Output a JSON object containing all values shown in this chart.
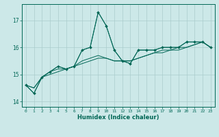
{
  "title": "",
  "xlabel": "Humidex (Indice chaleur)",
  "ylabel": "",
  "xlim": [
    -0.5,
    23.5
  ],
  "ylim": [
    13.8,
    17.6
  ],
  "yticks": [
    14,
    15,
    16,
    17
  ],
  "xticks": [
    0,
    1,
    2,
    3,
    4,
    5,
    6,
    7,
    8,
    9,
    10,
    11,
    12,
    13,
    14,
    15,
    16,
    17,
    18,
    19,
    20,
    21,
    22,
    23
  ],
  "background_color": "#cce8e8",
  "grid_color": "#aacccc",
  "line_color": "#006655",
  "series": [
    [
      14.6,
      14.3,
      14.9,
      15.1,
      15.3,
      15.2,
      15.3,
      15.9,
      16.0,
      17.3,
      16.8,
      15.9,
      15.5,
      15.4,
      15.9,
      15.9,
      15.9,
      16.0,
      16.0,
      16.0,
      16.2,
      16.2,
      16.2,
      16.0
    ],
    [
      14.6,
      14.3,
      14.9,
      15.1,
      15.3,
      15.2,
      15.3,
      15.9,
      16.0,
      17.3,
      16.8,
      15.9,
      15.5,
      15.4,
      15.9,
      15.9,
      15.9,
      16.0,
      16.0,
      16.0,
      16.2,
      16.2,
      16.2,
      16.0
    ],
    [
      14.6,
      14.5,
      14.9,
      15.1,
      15.2,
      15.2,
      15.3,
      15.5,
      15.6,
      15.7,
      15.6,
      15.5,
      15.5,
      15.5,
      15.6,
      15.7,
      15.8,
      15.9,
      15.9,
      16.0,
      16.0,
      16.1,
      16.2,
      16.0
    ],
    [
      14.6,
      14.5,
      14.9,
      15.0,
      15.1,
      15.2,
      15.3,
      15.4,
      15.5,
      15.6,
      15.6,
      15.5,
      15.5,
      15.5,
      15.6,
      15.7,
      15.8,
      15.8,
      15.9,
      15.9,
      16.0,
      16.1,
      16.2,
      16.0
    ]
  ]
}
